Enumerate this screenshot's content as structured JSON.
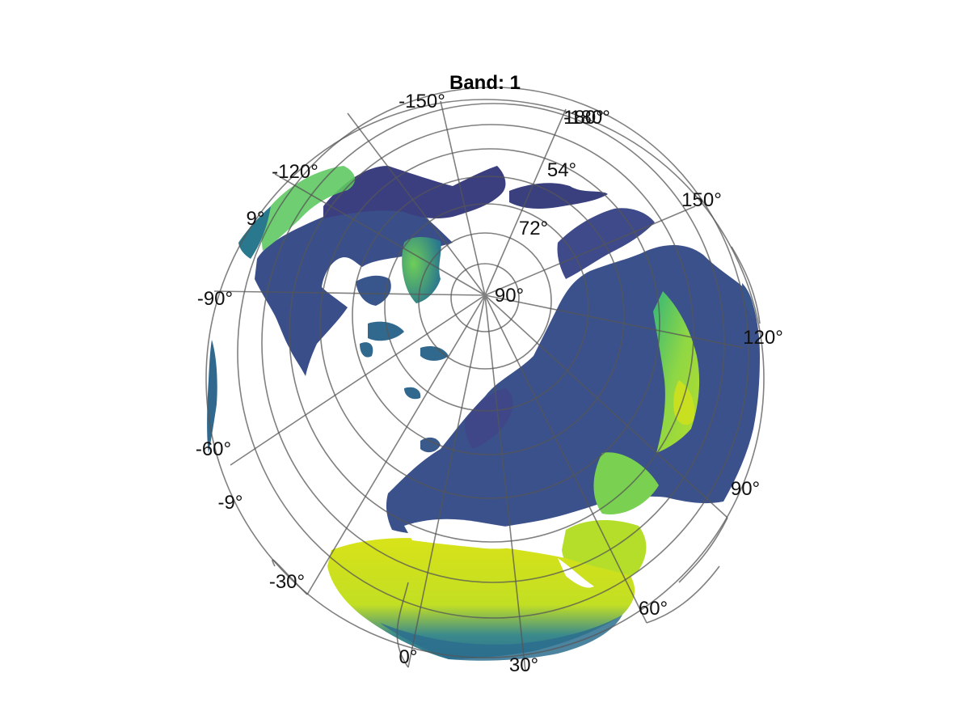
{
  "title": "Band: 1",
  "colormap": [
    "#440154",
    "#3b528b",
    "#21918c",
    "#5ec962",
    "#fde725"
  ],
  "longitude_labels": [
    "-150°",
    "-180°",
    "180°",
    "150°",
    "120°",
    "90°",
    "60°",
    "30°",
    "0°",
    "-30°",
    "-60°",
    "-90°",
    "-120°"
  ],
  "latitude_labels": [
    "54°",
    "72°",
    "90°",
    "9°",
    "-9°"
  ]
}
